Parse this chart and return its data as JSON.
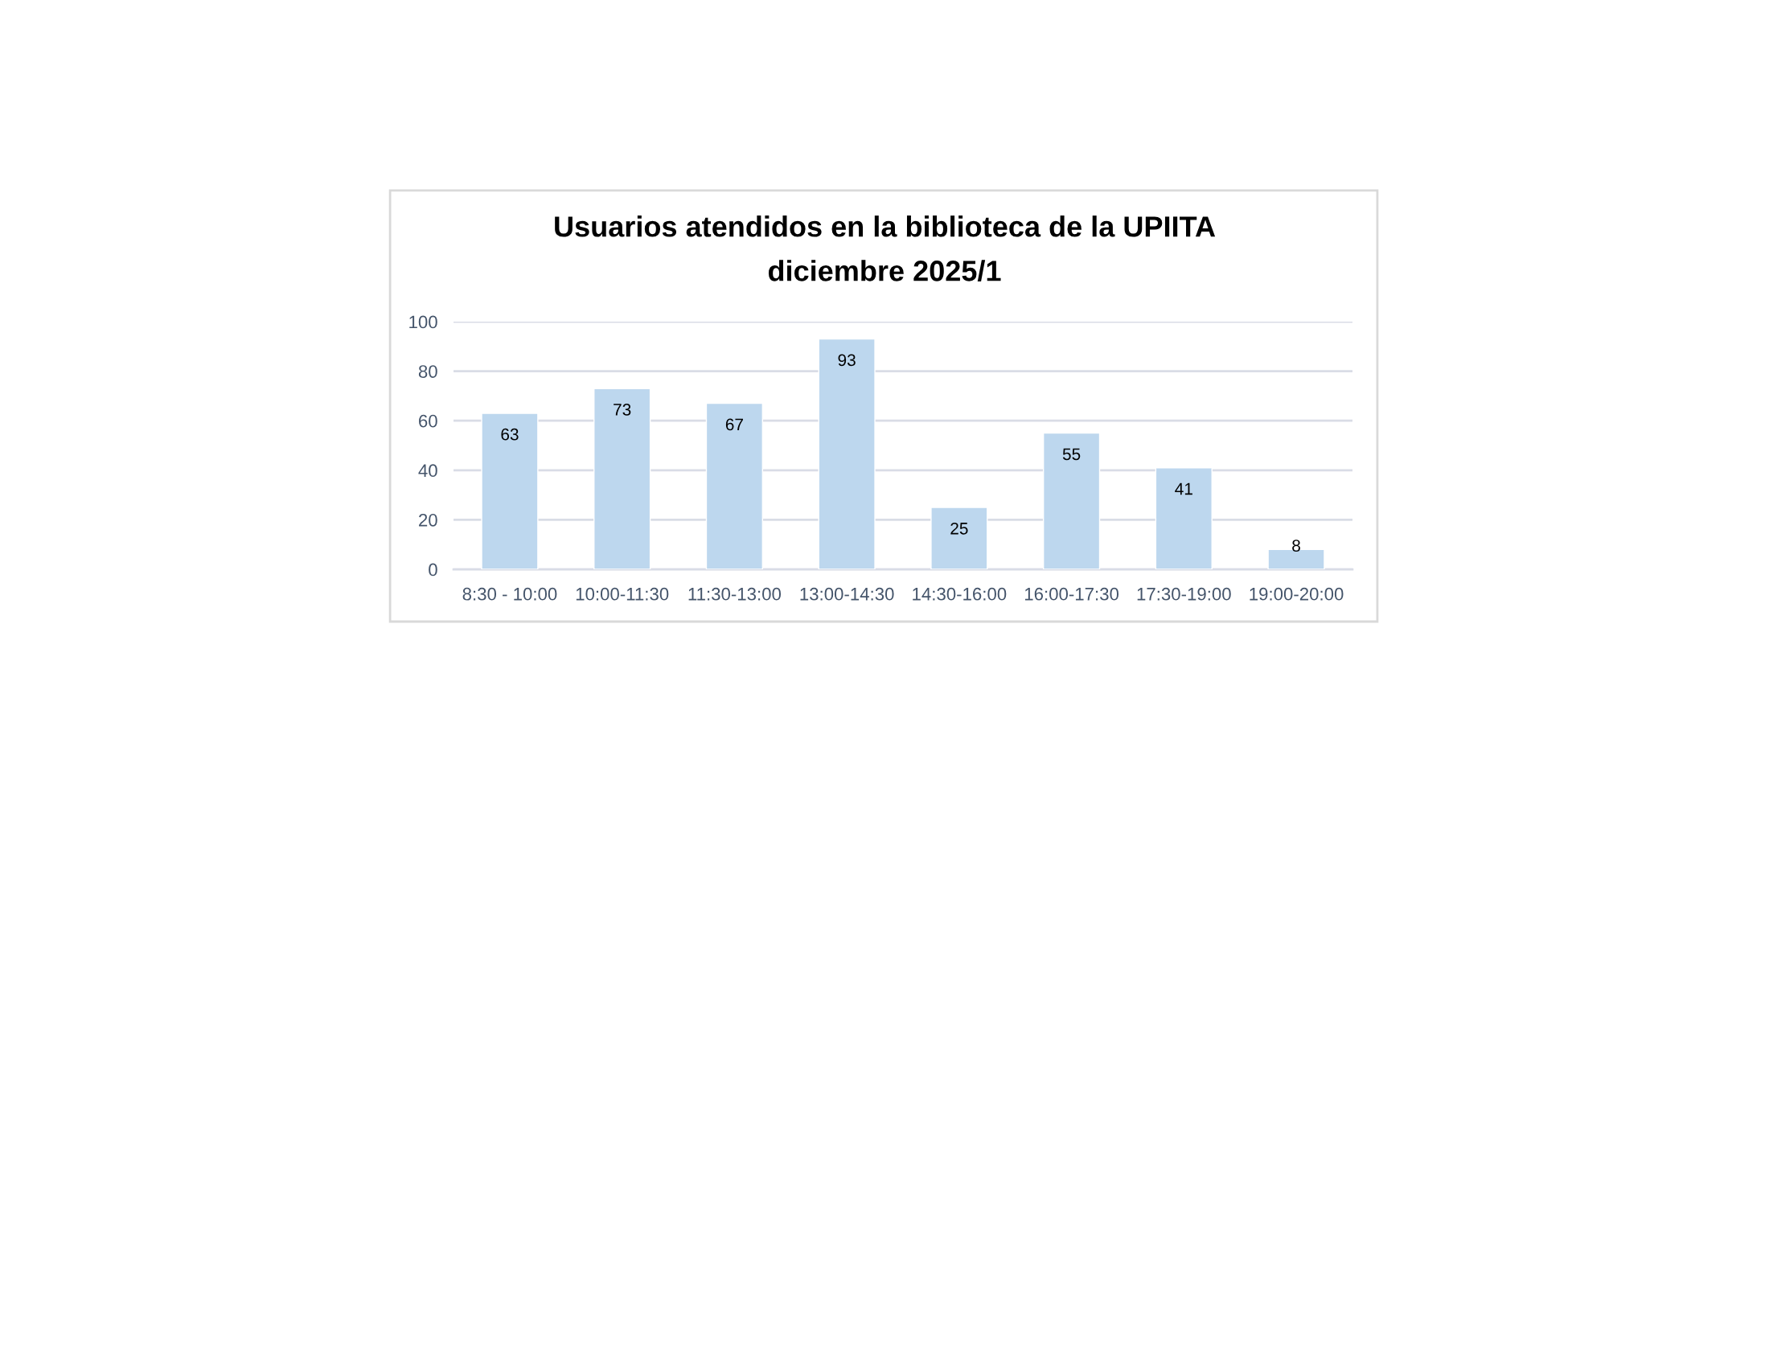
{
  "chart_data": {
    "type": "bar",
    "title": "Usuarios atendidos en la biblioteca de la UPIITA",
    "subtitle": "diciembre 2025/1",
    "categories": [
      "8:30 - 10:00",
      "10:00-11:30",
      "11:30-13:00",
      "13:00-14:30",
      "14:30-16:00",
      "16:00-17:30",
      "17:30-19:00",
      "19:00-20:00"
    ],
    "values": [
      63,
      73,
      67,
      93,
      25,
      55,
      41,
      8
    ],
    "color": "#bdd7ee",
    "ylim": [
      0,
      100
    ],
    "yticks": [
      0,
      20,
      40,
      60,
      80,
      100
    ],
    "grid": "y",
    "data_labels": true
  }
}
